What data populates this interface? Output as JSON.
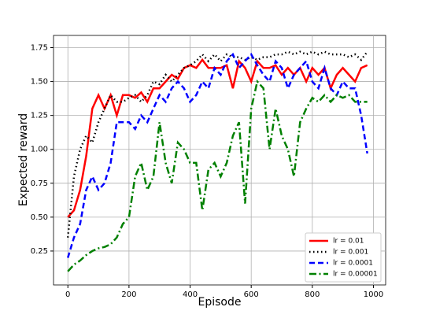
{
  "chart_data": {
    "type": "line",
    "x_label": "Episode",
    "y_label": "Expected reward",
    "xlim": [
      -47,
      1040
    ],
    "ylim": [
      0.0,
      1.84
    ],
    "xticks": [
      0,
      200,
      400,
      600,
      800,
      1000
    ],
    "yticks": [
      0.25,
      {
        "value": 0.5,
        "label": "0.50"
      },
      0.75,
      {
        "value": 1.0,
        "label": "1.00"
      },
      1.25,
      {
        "value": 1.5,
        "label": "1.50"
      },
      1.75
    ],
    "grid": true,
    "legend": "lower right",
    "x": [
      0,
      20,
      40,
      60,
      80,
      100,
      120,
      140,
      160,
      180,
      200,
      220,
      240,
      260,
      280,
      300,
      320,
      340,
      360,
      380,
      400,
      420,
      440,
      460,
      480,
      500,
      520,
      540,
      560,
      580,
      600,
      620,
      640,
      660,
      680,
      700,
      720,
      740,
      760,
      780,
      800,
      820,
      840,
      860,
      880,
      900,
      920,
      940,
      960,
      980
    ],
    "series": [
      {
        "name": "lr = 0.01",
        "color": "#ff0000",
        "linestyle": "-",
        "values": [
          0.5,
          0.55,
          0.7,
          0.95,
          1.3,
          1.4,
          1.3,
          1.4,
          1.25,
          1.4,
          1.4,
          1.38,
          1.42,
          1.35,
          1.45,
          1.45,
          1.5,
          1.55,
          1.52,
          1.6,
          1.62,
          1.6,
          1.66,
          1.6,
          1.6,
          1.6,
          1.62,
          1.45,
          1.65,
          1.6,
          1.5,
          1.65,
          1.6,
          1.6,
          1.62,
          1.55,
          1.6,
          1.55,
          1.6,
          1.5,
          1.6,
          1.55,
          1.6,
          1.45,
          1.55,
          1.6,
          1.55,
          1.5,
          1.6,
          1.62
        ]
      },
      {
        "name": "lr = 0.001",
        "color": "#000000",
        "linestyle": ":",
        "values": [
          0.35,
          0.8,
          1.0,
          1.1,
          1.05,
          1.2,
          1.3,
          1.4,
          1.35,
          1.35,
          1.38,
          1.4,
          1.35,
          1.4,
          1.5,
          1.48,
          1.55,
          1.5,
          1.55,
          1.6,
          1.62,
          1.65,
          1.7,
          1.65,
          1.7,
          1.65,
          1.7,
          1.68,
          1.68,
          1.66,
          1.68,
          1.66,
          1.68,
          1.68,
          1.7,
          1.7,
          1.72,
          1.7,
          1.72,
          1.7,
          1.72,
          1.7,
          1.72,
          1.7,
          1.7,
          1.7,
          1.68,
          1.7,
          1.66,
          1.72
        ]
      },
      {
        "name": "lr = 0.0001",
        "color": "#0000ff",
        "linestyle": "--",
        "values": [
          0.2,
          0.35,
          0.45,
          0.7,
          0.8,
          0.7,
          0.75,
          0.9,
          1.2,
          1.2,
          1.2,
          1.15,
          1.25,
          1.2,
          1.3,
          1.4,
          1.35,
          1.45,
          1.5,
          1.45,
          1.35,
          1.4,
          1.5,
          1.45,
          1.6,
          1.55,
          1.65,
          1.7,
          1.6,
          1.65,
          1.7,
          1.62,
          1.55,
          1.5,
          1.65,
          1.6,
          1.45,
          1.55,
          1.6,
          1.65,
          1.5,
          1.45,
          1.6,
          1.45,
          1.4,
          1.5,
          1.45,
          1.45,
          1.25,
          0.97
        ]
      },
      {
        "name": "lr = 0.00001",
        "color": "#008000",
        "linestyle": "-.",
        "values": [
          0.1,
          0.15,
          0.18,
          0.22,
          0.25,
          0.27,
          0.28,
          0.3,
          0.35,
          0.45,
          0.5,
          0.8,
          0.9,
          0.7,
          0.8,
          1.2,
          0.9,
          0.75,
          1.05,
          1.0,
          0.9,
          0.9,
          0.55,
          0.85,
          0.9,
          0.8,
          0.9,
          1.1,
          1.2,
          0.6,
          1.3,
          1.5,
          1.45,
          1.0,
          1.3,
          1.1,
          1.0,
          0.8,
          1.2,
          1.3,
          1.38,
          1.35,
          1.4,
          1.35,
          1.4,
          1.38,
          1.4,
          1.35,
          1.35,
          1.35
        ]
      }
    ]
  }
}
